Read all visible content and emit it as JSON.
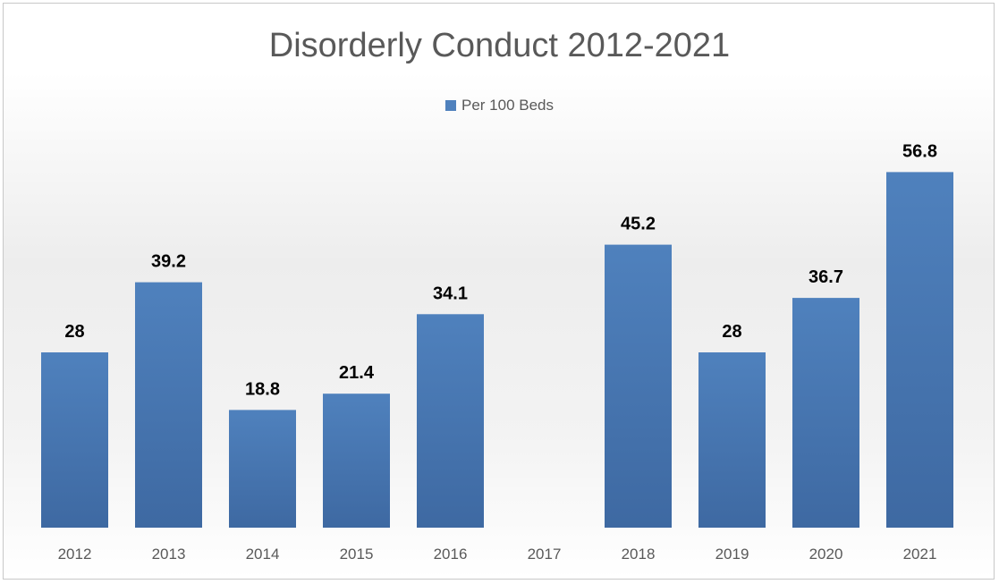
{
  "chart_data": {
    "type": "bar",
    "title": "Disorderly Conduct 2012-2021",
    "categories": [
      "2012",
      "2013",
      "2014",
      "2015",
      "2016",
      "2017",
      "2018",
      "2019",
      "2020",
      "2021"
    ],
    "series": [
      {
        "name": "Per 100 Beds",
        "values": [
          28,
          39.2,
          18.8,
          21.4,
          34.1,
          null,
          45.2,
          28,
          36.7,
          56.8
        ],
        "color": "#4f81bd"
      }
    ],
    "xlabel": "",
    "ylabel": "",
    "ylim": [
      0,
      60
    ],
    "grid": false,
    "legend_position": "top"
  }
}
